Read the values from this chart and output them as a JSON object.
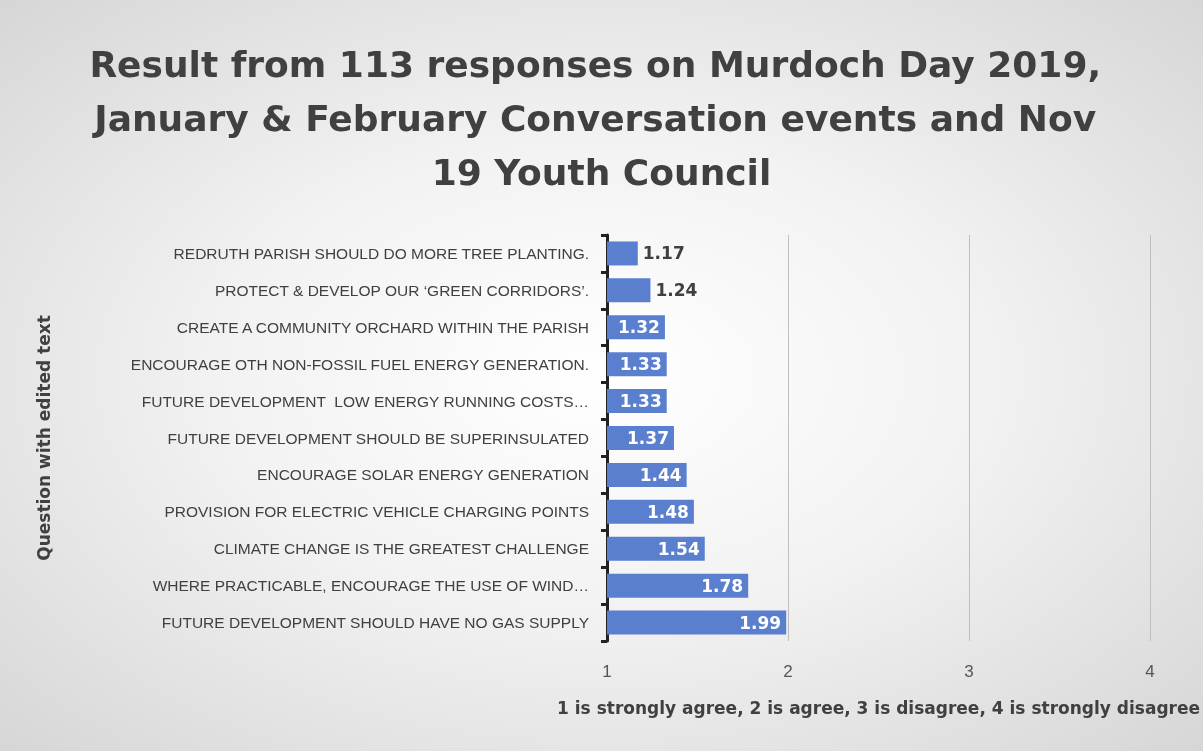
{
  "chart_data": {
    "type": "bar",
    "orientation": "horizontal",
    "title": "Result from 113 responses on Murdoch Day 2019, January & February Conversation events and Nov 19 Youth Council",
    "xlabel": "1 is strongly agree, 2 is agree, 3 is disagree, 4 is strongly disagree",
    "ylabel": "Question with edited text",
    "categories": [
      "REDRUTH PARISH SHOULD DO MORE TREE PLANTING.",
      "PROTECT & DEVELOP OUR ‘GREEN CORRIDORS’.",
      "CREATE A COMMUNITY ORCHARD WITHIN THE PARISH",
      "ENCOURAGE OTH NON-FOSSIL FUEL ENERGY GENERATION.",
      "FUTURE DEVELOPMENT  LOW ENERGY RUNNING COSTS…",
      "FUTURE DEVELOPMENT SHOULD BE SUPERINSULATED",
      "ENCOURAGE SOLAR ENERGY GENERATION",
      "PROVISION FOR ELECTRIC VEHICLE CHARGING POINTS",
      "CLIMATE CHANGE IS THE GREATEST CHALLENGE",
      "WHERE PRACTICABLE, ENCOURAGE THE USE OF WIND…",
      "FUTURE DEVELOPMENT SHOULD HAVE NO GAS SUPPLY"
    ],
    "values": [
      1.17,
      1.24,
      1.32,
      1.33,
      1.33,
      1.37,
      1.44,
      1.48,
      1.54,
      1.78,
      1.99
    ],
    "color": "#5b7fcf",
    "xlim": [
      1,
      4
    ],
    "xticks": [
      1,
      2,
      3,
      4
    ],
    "grid": "x",
    "data_labels": true
  }
}
